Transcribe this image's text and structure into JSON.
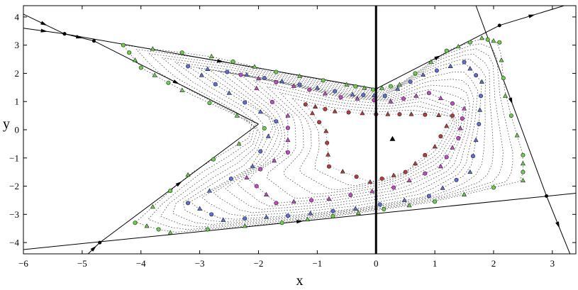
{
  "chart_data": {
    "type": "scatter",
    "title": "",
    "xlabel": "x",
    "ylabel": "y",
    "xlim": [
      -6,
      3.4
    ],
    "ylim": [
      -4.4,
      4.4
    ],
    "x_ticks": [
      -6,
      -5,
      -4,
      -3,
      -2,
      -1,
      0,
      1,
      2,
      3
    ],
    "y_ticks": [
      -4,
      -3,
      -2,
      -1,
      0,
      1,
      2,
      3,
      4
    ],
    "x_tick_labels": [
      "−6",
      "−5",
      "−4",
      "−3",
      "−2",
      "−1",
      "0",
      "1",
      "2",
      "3"
    ],
    "y_tick_labels": [
      "−4",
      "−3",
      "−2",
      "−1",
      "0",
      "1",
      "2",
      "3",
      "4"
    ],
    "grid": false,
    "legend": "none",
    "boundary_polygon": [
      [
        -4.8,
        3.1
      ],
      [
        -2.0,
        0.2
      ],
      [
        -4.8,
        -4.0
      ],
      [
        3.3,
        -2.2
      ],
      [
        2.1,
        3.7
      ],
      [
        0.0,
        1.45
      ],
      [
        -5.3,
        3.4
      ]
    ],
    "vertical_axis_line": {
      "x": 0
    },
    "filled_triangle_marker": [
      0.28,
      -0.32
    ],
    "colors": {
      "outer": "#6ccf4a",
      "middle": "#5b6fd6",
      "inner": "#c548c4",
      "core": "#b83a3a",
      "axis": "#000000"
    },
    "level_curves": [
      {
        "name": "",
        "color": "#6ccf4a",
        "points": [
          [
            -4.3,
            3.0
          ],
          [
            -2.8,
            2.6
          ],
          [
            -1.7,
            2.05
          ],
          [
            -0.5,
            1.6
          ],
          [
            -0.05,
            1.42
          ],
          [
            0.4,
            1.6
          ],
          [
            1.2,
            2.8
          ],
          [
            1.8,
            3.25
          ],
          [
            2.1,
            3.1
          ],
          [
            2.2,
            1.2
          ],
          [
            2.5,
            -0.9
          ],
          [
            2.5,
            -1.8
          ],
          [
            1.0,
            -2.55
          ],
          [
            -0.3,
            -2.95
          ],
          [
            -1.6,
            -3.3
          ],
          [
            -3.5,
            -3.65
          ],
          [
            -4.1,
            -3.3
          ],
          [
            -3.2,
            -1.6
          ],
          [
            -1.9,
            0.05
          ],
          [
            -3.3,
            1.4
          ],
          [
            -4.0,
            2.2
          ],
          [
            -4.3,
            3.0
          ]
        ]
      },
      {
        "name": "",
        "color": "#5b6fd6",
        "points": [
          [
            -3.2,
            2.25
          ],
          [
            -2.2,
            1.95
          ],
          [
            -1.3,
            1.6
          ],
          [
            -0.4,
            1.25
          ],
          [
            0.15,
            1.2
          ],
          [
            0.8,
            1.95
          ],
          [
            1.5,
            2.4
          ],
          [
            1.8,
            1.7
          ],
          [
            1.75,
            0.2
          ],
          [
            1.6,
            -1.5
          ],
          [
            0.9,
            -2.35
          ],
          [
            -0.35,
            -2.8
          ],
          [
            -1.5,
            -3.05
          ],
          [
            -2.6,
            -3.2
          ],
          [
            -3.2,
            -2.6
          ],
          [
            -2.1,
            -1.3
          ],
          [
            -1.7,
            0.3
          ],
          [
            -2.5,
            1.3
          ],
          [
            -3.2,
            2.25
          ]
        ]
      },
      {
        "name": "",
        "color": "#c548c4",
        "points": [
          [
            -2.3,
            1.95
          ],
          [
            -1.4,
            1.55
          ],
          [
            -0.6,
            1.15
          ],
          [
            0.25,
            1.0
          ],
          [
            0.9,
            1.3
          ],
          [
            1.5,
            0.75
          ],
          [
            1.4,
            -0.3
          ],
          [
            1.1,
            -1.3
          ],
          [
            0.3,
            -2.05
          ],
          [
            -0.8,
            -2.45
          ],
          [
            -1.7,
            -2.6
          ],
          [
            -2.2,
            -1.7
          ],
          [
            -1.5,
            -0.8
          ],
          [
            -1.5,
            0.5
          ],
          [
            -2.3,
            1.95
          ]
        ]
      },
      {
        "name": "",
        "color": "#b83a3a",
        "points": [
          [
            -1.2,
            0.9
          ],
          [
            -0.7,
            0.65
          ],
          [
            0.0,
            0.55
          ],
          [
            0.6,
            0.55
          ],
          [
            1.3,
            0.5
          ],
          [
            1.0,
            -0.6
          ],
          [
            0.5,
            -1.5
          ],
          [
            -0.1,
            -1.85
          ],
          [
            -0.8,
            -1.3
          ],
          [
            -0.85,
            -0.05
          ],
          [
            -1.2,
            0.9
          ]
        ]
      }
    ],
    "outer_curves": [
      {
        "name": "",
        "points": [
          [
            -6.0,
            3.6
          ],
          [
            -5.3,
            3.4
          ],
          [
            -4.8,
            3.15
          ],
          [
            -2.0,
            0.2
          ]
        ],
        "arrows": [
          "right"
        ]
      },
      {
        "name": "",
        "points": [
          [
            -6.0,
            4.1
          ],
          [
            -5.3,
            3.4
          ],
          [
            0.0,
            1.45
          ]
        ],
        "arrows": [
          "left"
        ]
      },
      {
        "name": "",
        "points": [
          [
            -4.9,
            -4.4
          ],
          [
            -4.7,
            -4.0
          ],
          [
            -2.0,
            0.2
          ]
        ],
        "arrows": [
          "up-right"
        ]
      },
      {
        "name": "",
        "points": [
          [
            -6.0,
            -4.25
          ],
          [
            3.4,
            -2.25
          ]
        ],
        "arrows": [
          "right",
          "left"
        ]
      },
      {
        "name": "",
        "points": [
          [
            1.7,
            4.4
          ],
          [
            2.9,
            -2.35
          ],
          [
            3.3,
            -4.4
          ]
        ],
        "arrows": [
          "down",
          "up"
        ]
      },
      {
        "name": "",
        "points": [
          [
            0.0,
            1.45
          ],
          [
            2.1,
            3.7
          ],
          [
            3.2,
            4.4
          ]
        ],
        "arrows": [
          "up-right",
          "down-left"
        ]
      }
    ]
  }
}
